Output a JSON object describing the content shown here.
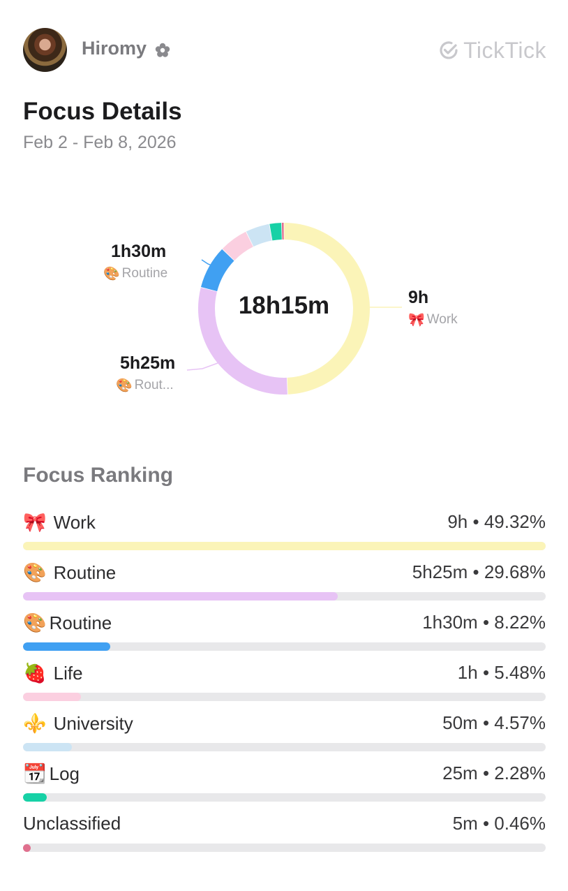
{
  "header": {
    "username": "Hiromy",
    "badge_icon": "flower-icon",
    "brand": "TickTick"
  },
  "page": {
    "title": "Focus Details",
    "date_range": "Feb 2 - Feb 8, 2026"
  },
  "chart_data": {
    "type": "pie",
    "donut": true,
    "center_label": "18h15m",
    "slices": [
      {
        "name": "Work",
        "duration": "9h",
        "percent": 49.32,
        "color": "#fbf4b8",
        "emoji": "🎀"
      },
      {
        "name": "Routine",
        "duration": "5h25m",
        "percent": 29.68,
        "color": "#e7c3f5",
        "emoji": "🎨"
      },
      {
        "name": "Routine",
        "duration": "1h30m",
        "percent": 8.22,
        "color": "#40a0f2",
        "emoji": "🎨"
      },
      {
        "name": "Life",
        "duration": "1h",
        "percent": 5.48,
        "color": "#fbcfe0",
        "emoji": "🍓"
      },
      {
        "name": "University",
        "duration": "50m",
        "percent": 4.57,
        "color": "#cce4f4",
        "emoji": "⚜️"
      },
      {
        "name": "Log",
        "duration": "25m",
        "percent": 2.28,
        "color": "#17d1a6",
        "emoji": "📆"
      },
      {
        "name": "Unclassified",
        "duration": "5m",
        "percent": 0.46,
        "color": "#e0708e",
        "emoji": ""
      }
    ],
    "callouts": [
      {
        "value": "9h",
        "label": "Work",
        "emoji": "🎀"
      },
      {
        "value": "1h30m",
        "label": "Routine",
        "emoji": "🎨"
      },
      {
        "value": "5h25m",
        "label": "Rout...",
        "emoji": "🎨"
      }
    ]
  },
  "ranking": {
    "title": "Focus Ranking",
    "items": [
      {
        "emoji": "🎀",
        "name": "Work",
        "value": "9h • 49.32%",
        "fill": 1.0,
        "color": "#fbf4b8"
      },
      {
        "emoji": "🎨",
        "name": "Routine",
        "value": "5h25m • 29.68%",
        "fill": 0.602,
        "color": "#e7c3f5"
      },
      {
        "emoji": "🎨",
        "name": "Routine",
        "value": "1h30m • 8.22%",
        "fill": 0.167,
        "color": "#40a0f2"
      },
      {
        "emoji": "🍓",
        "name": "Life",
        "value": "1h • 5.48%",
        "fill": 0.111,
        "color": "#fbcfe0"
      },
      {
        "emoji": "⚜️",
        "name": "University",
        "value": "50m • 4.57%",
        "fill": 0.093,
        "color": "#cce4f4"
      },
      {
        "emoji": "📆",
        "name": "Log",
        "value": "25m • 2.28%",
        "fill": 0.046,
        "color": "#17d1a6"
      },
      {
        "emoji": "",
        "name": "Unclassified",
        "value": "5m • 0.46%",
        "fill": 0.009,
        "color": "#e0708e"
      }
    ]
  }
}
